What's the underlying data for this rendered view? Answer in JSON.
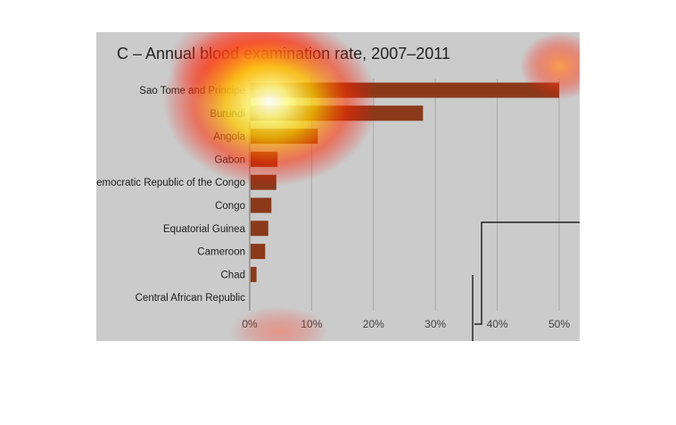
{
  "chart_data": {
    "type": "bar",
    "orientation": "horizontal",
    "title": "C – Annual blood examination rate, 2007–2011",
    "xlabel": "",
    "ylabel": "",
    "categories": [
      "Sao Tome and Principe",
      "Burundi",
      "Angola",
      "Gabon",
      "Democratic Republic of the Congo",
      "Congo",
      "Equatorial Guinea",
      "Cameroon",
      "Chad",
      "Central African Republic"
    ],
    "values": [
      50,
      28,
      11,
      4.5,
      4.3,
      3.5,
      3.0,
      2.5,
      1.1,
      0
    ],
    "xlim": [
      0,
      50
    ],
    "xticks": [
      0,
      10,
      20,
      30,
      40,
      50
    ],
    "xtick_labels": [
      "0%",
      "10%",
      "20%",
      "30%",
      "40%",
      "50%"
    ],
    "grid": true,
    "colors": {
      "bar": "#8a3a1a",
      "panel": "#cbcbcb",
      "grid": "#a9a9a9",
      "heatmap_hot": "#ffffcc",
      "heatmap_mid": "#ffd400",
      "heatmap_cool": "#ff0000"
    }
  }
}
